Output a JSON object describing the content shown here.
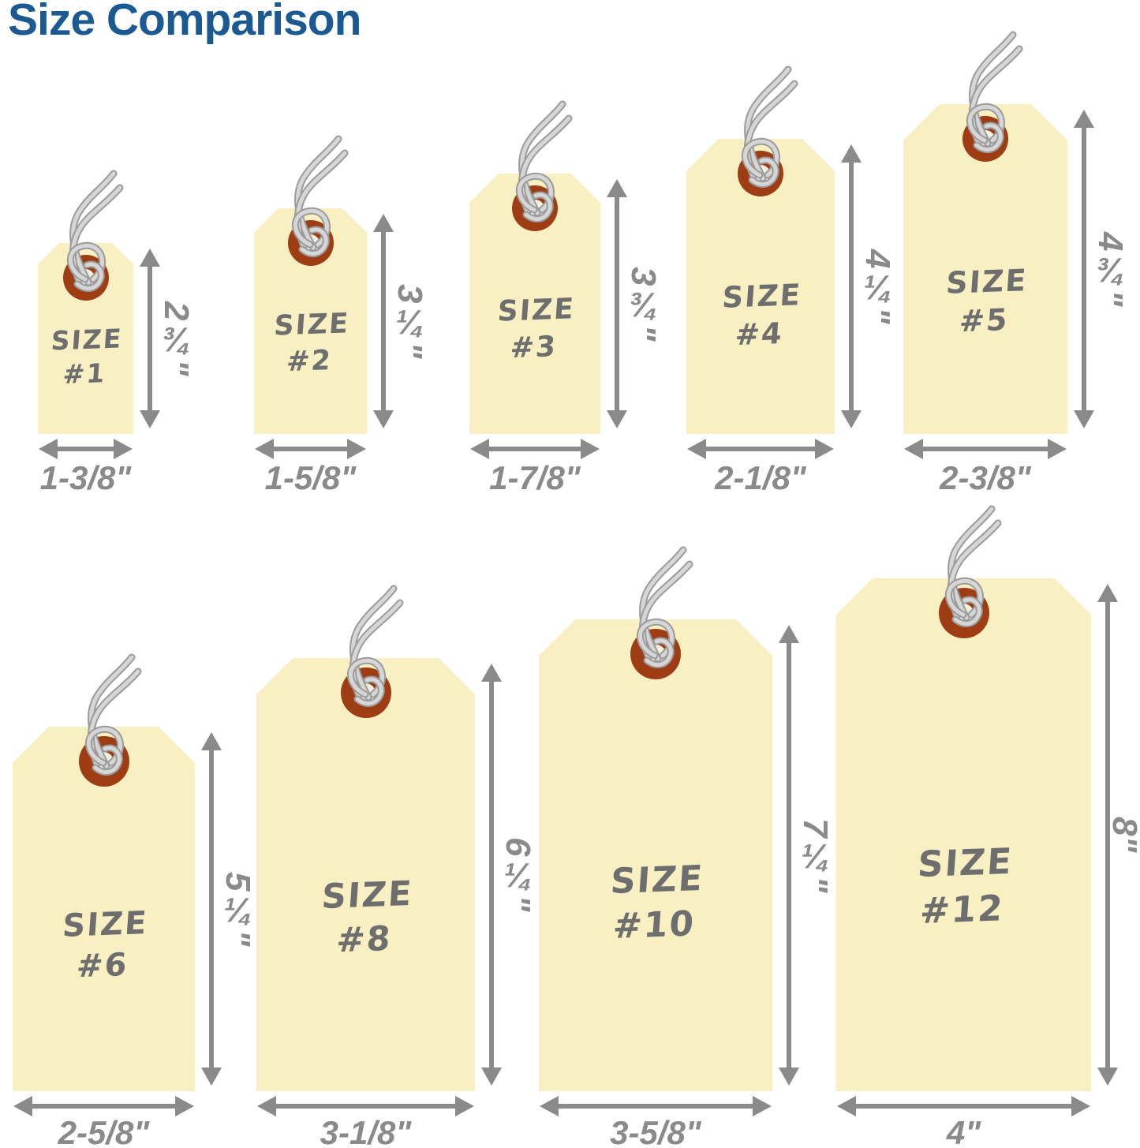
{
  "title": "Size Comparison",
  "colors": {
    "title_blue": "#1B5993",
    "tag_fill": "#F8EFC3",
    "eyelet_rust": "#9E3D14",
    "eyelet_hole": "#F4EEDC",
    "dimension_gray": "#8A8A8A",
    "tag_text_gray": "#6E6E6E",
    "string_light": "#D6D6D6",
    "string_dark": "#9B9B9B"
  },
  "tags": [
    {
      "id": "1",
      "row": 1,
      "label_line1": "SIZE",
      "label_line2": "#1",
      "height_label": "2¾\"",
      "width_label": "1-3/8\"",
      "height_in": 2.75,
      "width_in": 1.375
    },
    {
      "id": "2",
      "row": 1,
      "label_line1": "SIZE",
      "label_line2": "#2",
      "height_label": "3¼\"",
      "width_label": "1-5/8\"",
      "height_in": 3.25,
      "width_in": 1.625
    },
    {
      "id": "3",
      "row": 1,
      "label_line1": "SIZE",
      "label_line2": "#3",
      "height_label": "3¾\"",
      "width_label": "1-7/8\"",
      "height_in": 3.75,
      "width_in": 1.875
    },
    {
      "id": "4",
      "row": 1,
      "label_line1": "SIZE",
      "label_line2": "#4",
      "height_label": "4¼\"",
      "width_label": "2-1/8\"",
      "height_in": 4.25,
      "width_in": 2.125
    },
    {
      "id": "5",
      "row": 1,
      "label_line1": "SIZE",
      "label_line2": "#5",
      "height_label": "4¾\"",
      "width_label": "2-3/8\"",
      "height_in": 4.75,
      "width_in": 2.375
    },
    {
      "id": "6",
      "row": 2,
      "label_line1": "SIZE",
      "label_line2": "#6",
      "height_label": "5¼\"",
      "width_label": "2-5/8\"",
      "height_in": 5.25,
      "width_in": 2.625
    },
    {
      "id": "8",
      "row": 2,
      "label_line1": "SIZE",
      "label_line2": "#8",
      "height_label": "6¼\"",
      "width_label": "3-1/8\"",
      "height_in": 6.25,
      "width_in": 3.125
    },
    {
      "id": "10",
      "row": 2,
      "label_line1": "SIZE",
      "label_line2": "#10",
      "height_label": "7¼\"",
      "width_label": "3-5/8\"",
      "height_in": 7.25,
      "width_in": 3.625
    },
    {
      "id": "12",
      "row": 2,
      "label_line1": "SIZE",
      "label_line2": "#12",
      "height_label": "8\"",
      "width_label": "4\"",
      "height_in": 8,
      "width_in": 4
    }
  ]
}
